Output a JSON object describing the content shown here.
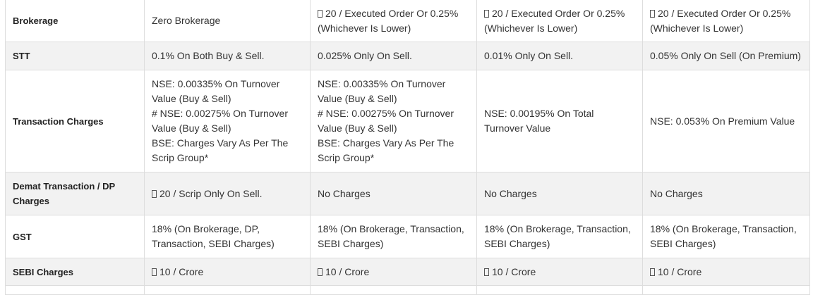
{
  "table": {
    "rows": [
      {
        "label": "Brokerage",
        "cells": [
          {
            "text": "Zero Brokerage"
          },
          {
            "text": "20 / Executed Order Or 0.25% (Whichever Is Lower)",
            "currency": true
          },
          {
            "text": "20 / Executed Order Or 0.25% (Whichever Is Lower)",
            "currency": true
          },
          {
            "text": "20 / Executed Order Or 0.25% (Whichever Is Lower)",
            "currency": true
          }
        ]
      },
      {
        "label": "STT",
        "cells": [
          {
            "text": "0.1% On Both Buy & Sell."
          },
          {
            "text": "0.025% Only On Sell."
          },
          {
            "text": "0.01% Only On Sell."
          },
          {
            "text": "0.05% Only On Sell (On Premium)"
          }
        ]
      },
      {
        "label": "Transaction Charges",
        "cells": [
          {
            "text": "NSE: 0.00335% On Turnover Value (Buy & Sell)\n# NSE: 0.00275% On Turnover Value (Buy & Sell)\nBSE: Charges Vary As Per The Scrip Group*"
          },
          {
            "text": "NSE: 0.00335% On Turnover Value (Buy & Sell)\n# NSE: 0.00275% On Turnover Value (Buy & Sell)\nBSE: Charges Vary As Per The Scrip Group*"
          },
          {
            "text": "NSE: 0.00195% On Total Turnover Value"
          },
          {
            "text": "NSE: 0.053% On Premium Value"
          }
        ]
      },
      {
        "label": "Demat Transaction / DP Charges",
        "cells": [
          {
            "text": "20 / Scrip Only On Sell.",
            "currency": true
          },
          {
            "text": "No Charges"
          },
          {
            "text": "No Charges"
          },
          {
            "text": "No Charges"
          }
        ]
      },
      {
        "label": "GST",
        "cells": [
          {
            "text": "18% (On Brokerage, DP, Transaction, SEBI Charges)"
          },
          {
            "text": "18% (On Brokerage, Transaction, SEBI Charges)"
          },
          {
            "text": "18% (On Brokerage, Transaction, SEBI Charges)"
          },
          {
            "text": "18% (On Brokerage, Transaction, SEBI Charges)"
          }
        ]
      },
      {
        "label": "SEBI Charges",
        "cells": [
          {
            "text": "10 / Crore",
            "currency": true
          },
          {
            "text": "10 / Crore",
            "currency": true
          },
          {
            "text": "10 / Crore",
            "currency": true
          },
          {
            "text": "10 / Crore",
            "currency": true
          }
        ]
      }
    ]
  }
}
